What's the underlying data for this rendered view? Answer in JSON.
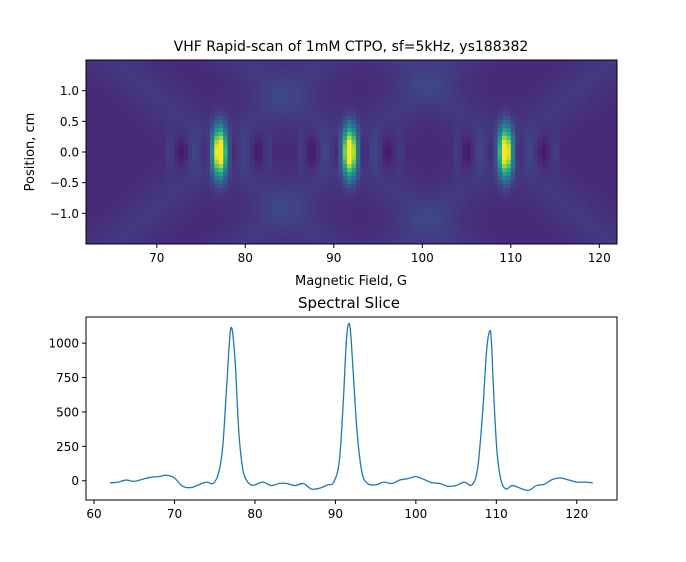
{
  "chart_data": [
    {
      "type": "heatmap",
      "title": "VHF Rapid-scan of 1mM CTPO, sf=5kHz, ys188382",
      "xlabel": "Magnetic Field, G",
      "ylabel": "Position, cm",
      "xlim": [
        62,
        122
      ],
      "ylim": [
        -1.5,
        1.5
      ],
      "xticks": [
        70,
        80,
        90,
        100,
        110,
        120
      ],
      "yticks": [
        -1.0,
        -0.5,
        0.0,
        0.5,
        1.0
      ],
      "ytick_labels": [
        "−1.0",
        "−0.5",
        "0.0",
        "0.5",
        "1.0"
      ],
      "colormap": "viridis",
      "grid": false,
      "peaks": [
        {
          "field": 77.1,
          "position": 0.0,
          "intensity": 1.0,
          "sigma_field": 0.55,
          "sigma_position": 0.28
        },
        {
          "field": 91.8,
          "position": 0.0,
          "intensity": 1.0,
          "sigma_field": 0.55,
          "sigma_position": 0.28
        },
        {
          "field": 109.4,
          "position": 0.0,
          "intensity": 0.97,
          "sigma_field": 0.55,
          "sigma_position": 0.28
        }
      ],
      "background_level": 0.12
    },
    {
      "type": "line",
      "title": "Spectral Slice",
      "xlabel": "",
      "ylabel": "",
      "xlim": [
        59,
        125
      ],
      "ylim": [
        -140,
        1190
      ],
      "xticks": [
        60,
        70,
        80,
        90,
        100,
        110,
        120
      ],
      "yticks": [
        0,
        250,
        500,
        750,
        1000
      ],
      "color": "#1f77b4",
      "grid": false,
      "series": [
        {
          "x": [
            62,
            63,
            64,
            65,
            66,
            67,
            68,
            69,
            70,
            71,
            72,
            73,
            74,
            74.8,
            75.5,
            76,
            76.5,
            77,
            77.5,
            78,
            78.5,
            79,
            79.5,
            80,
            81,
            82,
            83,
            84,
            85,
            86,
            87,
            88,
            89,
            89.8,
            90.5,
            91,
            91.4,
            91.8,
            92.2,
            92.7,
            93.3,
            94,
            95,
            96,
            97,
            98,
            99,
            100,
            101,
            102,
            103,
            104,
            105,
            106,
            107,
            107.7,
            108.3,
            108.8,
            109.2,
            109.4,
            109.7,
            110.1,
            110.6,
            111.2,
            112,
            113,
            114,
            115,
            116,
            117,
            118,
            119,
            120,
            121,
            122
          ],
          "y": [
            -15,
            -10,
            5,
            -5,
            10,
            25,
            30,
            40,
            20,
            -40,
            -50,
            -30,
            -10,
            -20,
            60,
            250,
            700,
            1110,
            900,
            350,
            80,
            0,
            -30,
            -30,
            -10,
            -35,
            -20,
            -20,
            -35,
            -20,
            -60,
            -55,
            -30,
            -10,
            150,
            600,
            1050,
            1125,
            800,
            350,
            60,
            -20,
            -30,
            -10,
            -20,
            5,
            15,
            30,
            10,
            -15,
            -20,
            -40,
            -35,
            -10,
            -30,
            100,
            500,
            950,
            1090,
            1000,
            600,
            200,
            0,
            -60,
            -35,
            -55,
            -70,
            -35,
            -25,
            10,
            20,
            5,
            -10,
            -10,
            -15
          ]
        }
      ]
    }
  ]
}
